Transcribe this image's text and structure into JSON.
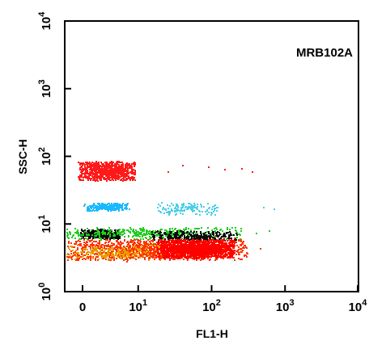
{
  "chart_data": {
    "type": "scatter",
    "title": "",
    "annotation": "MRB102A",
    "xlabel": "FL1-H",
    "ylabel": "SSC-H",
    "x_scale": "log",
    "y_scale": "log",
    "xlim": [
      0,
      10000
    ],
    "ylim": [
      1,
      10000
    ],
    "grid": false,
    "legend": "none",
    "x_ticks": [
      {
        "value": 0,
        "base": "0",
        "exp": ""
      },
      {
        "value": 10,
        "base": "10",
        "exp": "1"
      },
      {
        "value": 100,
        "base": "10",
        "exp": "2"
      },
      {
        "value": 1000,
        "base": "10",
        "exp": "3"
      },
      {
        "value": 10000,
        "base": "10",
        "exp": "4"
      }
    ],
    "y_ticks": [
      {
        "value": 1,
        "base": "10",
        "exp": "0"
      },
      {
        "value": 10,
        "base": "10",
        "exp": "1"
      },
      {
        "value": 100,
        "base": "10",
        "exp": "2"
      },
      {
        "value": 1000,
        "base": "10",
        "exp": "3"
      },
      {
        "value": 10000,
        "base": "10",
        "exp": "4"
      }
    ],
    "populations": [
      {
        "color": "#ff1a1a",
        "x_range": [
          1.5,
          9
        ],
        "y_range": [
          45,
          85
        ],
        "approx_count": 900
      },
      {
        "color": "#19b8ff",
        "x_range": [
          1.8,
          7
        ],
        "y_range": [
          16,
          21
        ],
        "approx_count": 260
      },
      {
        "color": "#4ccfe8",
        "x_range": [
          18,
          120
        ],
        "y_range": [
          14,
          21
        ],
        "approx_count": 140
      },
      {
        "color": "#000000",
        "x_range": [
          1.6,
          5.5
        ],
        "y_range": [
          6.2,
          8.5
        ],
        "approx_count": 380
      },
      {
        "color": "#22cc22",
        "x_range": [
          0.8,
          250
        ],
        "y_range": [
          6,
          9
        ],
        "approx_count": 420
      },
      {
        "color": "#0a0a0a",
        "x_range": [
          15,
          220
        ],
        "y_range": [
          5.5,
          8
        ],
        "approx_count": 300
      },
      {
        "color": "#ff3300",
        "x_range": [
          1,
          300
        ],
        "y_range": [
          3,
          6
        ],
        "approx_count": 1400
      },
      {
        "color": "#ff0000",
        "x_range": [
          18,
          200
        ],
        "y_range": [
          3.2,
          6
        ],
        "approx_count": 1500
      },
      {
        "color": "#e8a000",
        "x_range": [
          1,
          20
        ],
        "y_range": [
          3,
          5
        ],
        "approx_count": 220
      }
    ],
    "outliers": [
      {
        "color": "#ff1a1a",
        "x": 40,
        "y": 75
      },
      {
        "color": "#ff1a1a",
        "x": 90,
        "y": 70
      },
      {
        "color": "#ff1a1a",
        "x": 150,
        "y": 65
      },
      {
        "color": "#ff1a1a",
        "x": 250,
        "y": 68
      },
      {
        "color": "#ff1a1a",
        "x": 350,
        "y": 60
      },
      {
        "color": "#ff1a1a",
        "x": 25,
        "y": 60
      },
      {
        "color": "#4ccfe8",
        "x": 500,
        "y": 18
      },
      {
        "color": "#4ccfe8",
        "x": 700,
        "y": 17
      },
      {
        "color": "#22cc22",
        "x": 400,
        "y": 7.5
      },
      {
        "color": "#22cc22",
        "x": 600,
        "y": 8
      }
    ]
  }
}
